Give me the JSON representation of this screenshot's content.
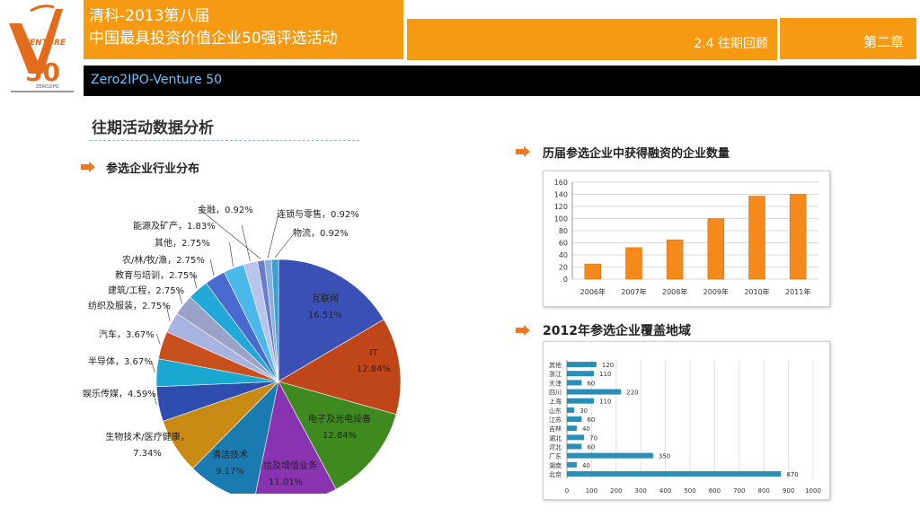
{
  "header": {
    "title_line1": "清科-2013第八届",
    "title_line2": "中国最具投资价值企业50强评选活动",
    "section": "2.4 往期回顾",
    "chapter": "第二章",
    "sub_bar": "Zero2IPO-Venture 50",
    "logo_text": "VENTURE 50",
    "logo_sub": "ZERO2IPO"
  },
  "page_title": "往期活动数据分析",
  "colors": {
    "accent": "#f59a12",
    "arrow": "#f07820",
    "bar_orange": "#f5891c",
    "bar_blue": "#2a8fb8"
  },
  "sections": {
    "pie_title": "参选企业行业分布",
    "funding_title": "历届参选企业中获得融资的企业数量",
    "region_title": "2012年参选企业覆盖地域"
  },
  "chart_data": [
    {
      "type": "pie",
      "slices": [
        {
          "label": "互联网",
          "value": 16.51,
          "text": "16.51%",
          "color": "#3b50b5"
        },
        {
          "label": "IT",
          "value": 12.84,
          "text": "12.84%",
          "color": "#c0461a"
        },
        {
          "label": "电子及光电设备",
          "value": 12.84,
          "text": "12.84%",
          "color": "#3f8a1e"
        },
        {
          "label": "电信及增值业务",
          "value": 11.01,
          "text": "11.01%",
          "color": "#8a33b0"
        },
        {
          "label": "清洁技术",
          "value": 9.17,
          "text": "9.17%",
          "color": "#1a7bb0"
        },
        {
          "label": "生物技术/医疗健康，",
          "value": 7.34,
          "text": "7.34%",
          "color": "#c98a14"
        },
        {
          "label": "娱乐传媒，4.59%",
          "value": 4.59,
          "text": "",
          "color": "#2e4dae"
        },
        {
          "label": "半导体，3.67%",
          "value": 3.67,
          "text": "",
          "color": "#19a8d0"
        },
        {
          "label": "汽车，3.67%",
          "value": 3.67,
          "text": "",
          "color": "#c8501e"
        },
        {
          "label": "纺织及服装，2.75%",
          "value": 2.75,
          "text": "",
          "color": "#a8b4e0"
        },
        {
          "label": "建筑/工程，2.75%",
          "value": 2.75,
          "text": "",
          "color": "#9aa2c8"
        },
        {
          "label": "教育与培训，2.75%",
          "value": 2.75,
          "text": "",
          "color": "#20a8d8"
        },
        {
          "label": "农/林/牧/渔，2.75%",
          "value": 2.75,
          "text": "",
          "color": "#4a6ad0"
        },
        {
          "label": "其他，2.75%",
          "value": 2.75,
          "text": "",
          "color": "#4ab8e8"
        },
        {
          "label": "能源及矿产，1.83%",
          "value": 1.83,
          "text": "",
          "color": "#b8c4ec"
        },
        {
          "label": "金融，0.92%",
          "value": 0.92,
          "text": "",
          "color": "#6a7ec8"
        },
        {
          "label": "连锁与零售，0.92%",
          "value": 0.92,
          "text": "",
          "color": "#8ab0e0"
        },
        {
          "label": "物流，0.92%",
          "value": 0.92,
          "text": "",
          "color": "#3aa0d0"
        }
      ]
    },
    {
      "type": "bar",
      "categories": [
        "2006年",
        "2007年",
        "2008年",
        "2009年",
        "2010年",
        "2011年"
      ],
      "values": [
        25,
        52,
        65,
        100,
        137,
        140
      ],
      "ylim": [
        0,
        160
      ],
      "yticks": [
        0,
        20,
        40,
        60,
        80,
        100,
        120,
        140,
        160
      ]
    },
    {
      "type": "bar",
      "orientation": "horizontal",
      "categories": [
        "其他",
        "浙江",
        "天津",
        "四川",
        "上海",
        "山东",
        "江苏",
        "吉林",
        "湖北",
        "河北",
        "广东",
        "湖南",
        "北京"
      ],
      "values": [
        120,
        110,
        60,
        220,
        110,
        30,
        60,
        40,
        70,
        60,
        350,
        40,
        870
      ],
      "xlim": [
        0,
        1000
      ],
      "xticks": [
        0,
        100,
        200,
        300,
        400,
        500,
        600,
        700,
        800,
        900,
        1000
      ]
    }
  ]
}
